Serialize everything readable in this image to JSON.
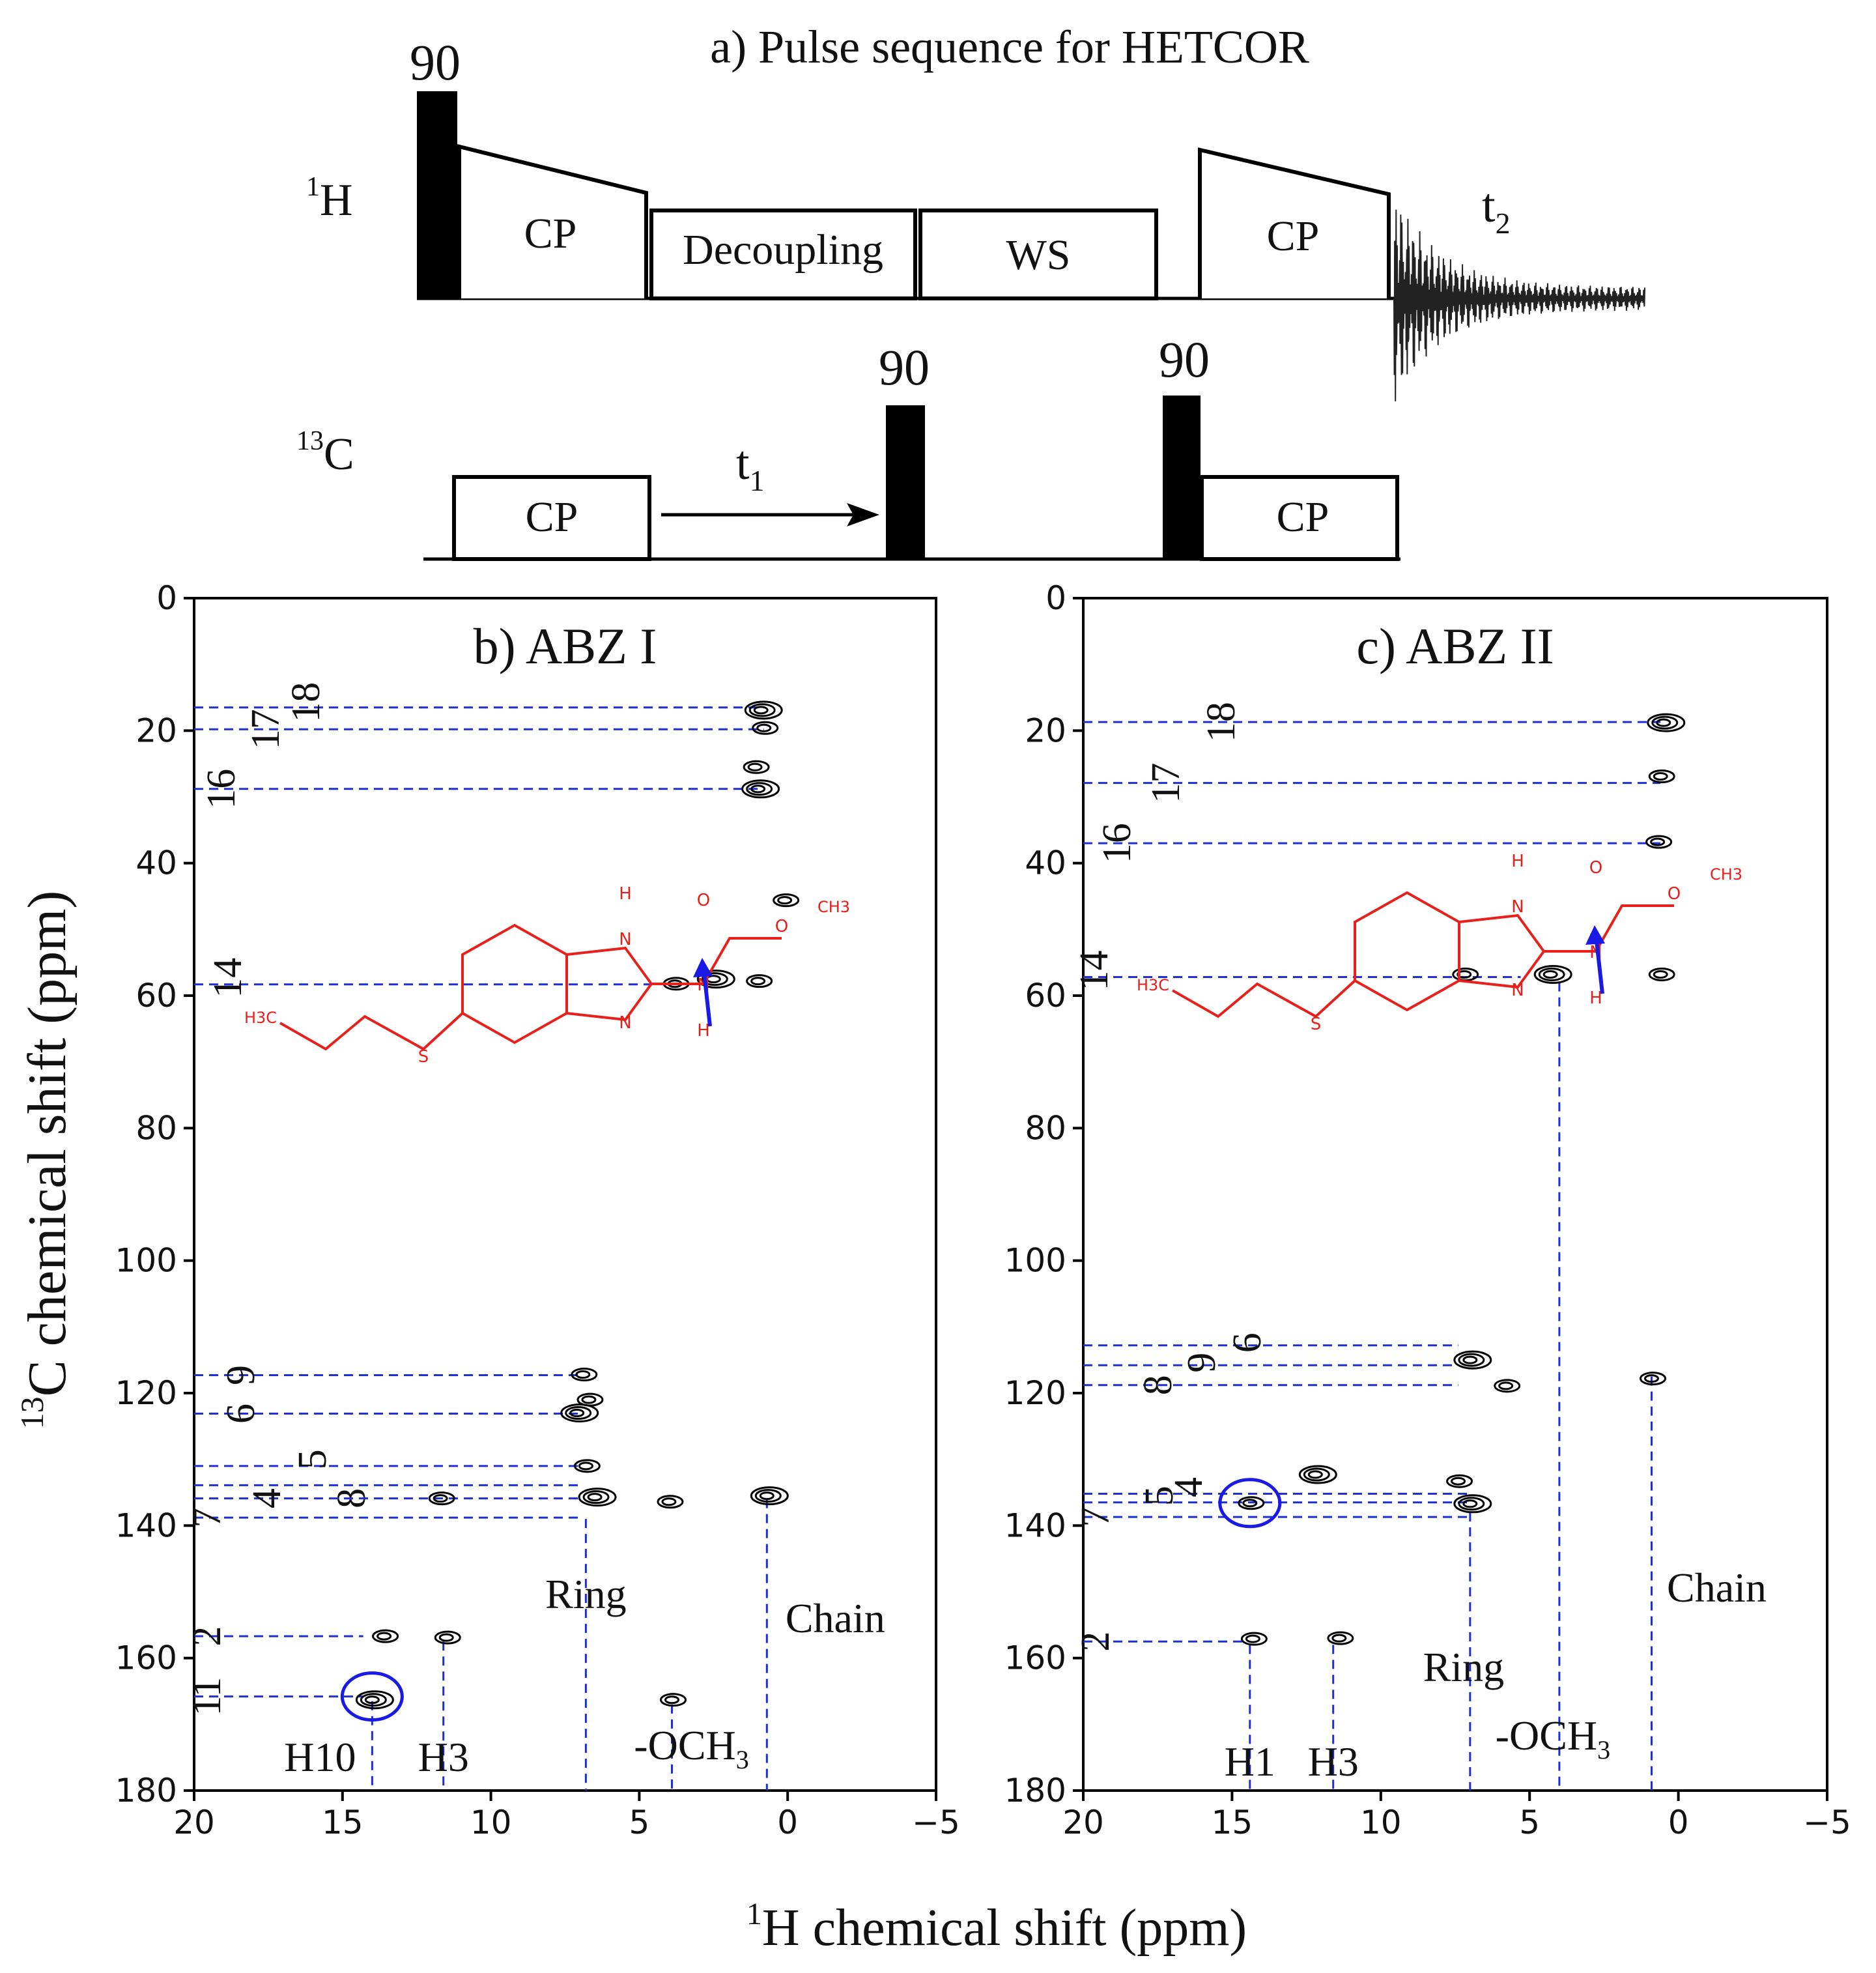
{
  "figure_title": "a) Pulse sequence for HETCOR",
  "pulse_sequence": {
    "channel_h": {
      "label": "1H",
      "sup": "1",
      "sym": "H"
    },
    "channel_c": {
      "label": "13C",
      "sup": "13",
      "sym": "C"
    },
    "pulse_90_label": "90",
    "blocks": {
      "cp": "CP",
      "decoupling": "Decoupling",
      "ws": "WS"
    },
    "t1": {
      "sym": "t",
      "sub": "1"
    },
    "t2": {
      "sym": "t",
      "sub": "2"
    }
  },
  "axes": {
    "x_label": {
      "sup": "1",
      "text": "H chemical shift (ppm)"
    },
    "y_label": {
      "sup": "13",
      "text": "C chemical shift (ppm)"
    },
    "x_ticks": [
      "20",
      "15",
      "10",
      "5",
      "0",
      "−5"
    ],
    "y_ticks": [
      "0",
      "20",
      "40",
      "60",
      "80",
      "100",
      "120",
      "140",
      "160",
      "180"
    ]
  },
  "colors": {
    "guide": "#1f2fd6",
    "molecule": "#e8201c",
    "arrow": "#1a1ae6",
    "contour": "#000000"
  },
  "chart_data": [
    {
      "type": "contour",
      "title": "b) ABZ I",
      "xlabel": "1H chemical shift (ppm)",
      "ylabel": "13C chemical shift (ppm)",
      "xlim": [
        20,
        -5
      ],
      "ylim": [
        180,
        0
      ],
      "h_lines": [
        {
          "label": "18",
          "c": 16.5,
          "h_end": 0.8
        },
        {
          "label": "17",
          "c": 19.8,
          "h_end": 0.8
        },
        {
          "label": "16",
          "c": 28.8,
          "h_end": 1.0
        },
        {
          "label": "14",
          "c": 58.3,
          "h_end": 4.4
        },
        {
          "label": "9",
          "c": 117.3,
          "h_end": 7.0
        },
        {
          "label": "6",
          "c": 123.1,
          "h_end": 7.0
        },
        {
          "label": "5",
          "c": 131.0,
          "h_end": 7.0
        },
        {
          "label": "8",
          "c": 133.9,
          "h_end": 7.0
        },
        {
          "label": "4",
          "c": 135.9,
          "h_end": 7.0
        },
        {
          "label": "7",
          "c": 138.8,
          "h_end": 7.0
        },
        {
          "label": "2",
          "c": 156.7,
          "h_end": 14.3
        },
        {
          "label": "11",
          "c": 165.8,
          "h_end": 14.3
        }
      ],
      "v_lines": [
        {
          "label": "H10",
          "h": 14.0,
          "c_start": 166.5
        },
        {
          "label": "H3",
          "h": 11.6,
          "c_start": 157.5
        },
        {
          "label": "Ring",
          "h": 6.8,
          "c_start": 139.0
        },
        {
          "label": "-OCH3",
          "h": 3.9,
          "c_start": 167.0
        },
        {
          "label": "Chain",
          "h": 0.7,
          "c_start": 136.0
        }
      ],
      "peaks": [
        {
          "h": 0.9,
          "c": 16.9
        },
        {
          "h": 0.8,
          "c": 19.6
        },
        {
          "h": 1.1,
          "c": 25.5
        },
        {
          "h": 1.0,
          "c": 28.8
        },
        {
          "h": 0.1,
          "c": 45.6
        },
        {
          "h": 3.8,
          "c": 58.2
        },
        {
          "h": 2.5,
          "c": 57.5
        },
        {
          "h": 1.0,
          "c": 57.8
        },
        {
          "h": 6.9,
          "c": 117.2
        },
        {
          "h": 7.1,
          "c": 123.0
        },
        {
          "h": 6.7,
          "c": 121.0
        },
        {
          "h": 6.8,
          "c": 131.0
        },
        {
          "h": 6.5,
          "c": 135.7
        },
        {
          "h": 11.7,
          "c": 135.9
        },
        {
          "h": 4.0,
          "c": 136.4
        },
        {
          "h": 0.7,
          "c": 135.5
        },
        {
          "h": 13.6,
          "c": 156.7
        },
        {
          "h": 11.5,
          "c": 156.9
        },
        {
          "h": 14.0,
          "c": 166.3
        },
        {
          "h": 3.9,
          "c": 166.3
        }
      ],
      "highlight": {
        "h": 14.0,
        "c": 165.8
      },
      "molecule_labels": {
        "n1": "N",
        "h1": "H",
        "n2": "N",
        "n3": "N",
        "h3": "H",
        "o1": "O",
        "o2": "O",
        "ch3": "CH3",
        "s": "S",
        "h3c": "H3C"
      }
    },
    {
      "type": "contour",
      "title": "c) ABZ II",
      "xlabel": "1H chemical shift (ppm)",
      "ylabel": "13C chemical shift (ppm)",
      "xlim": [
        20,
        -5
      ],
      "ylim": [
        180,
        0
      ],
      "h_lines": [
        {
          "label": "18",
          "c": 18.7,
          "h_end": 0.6
        },
        {
          "label": "17",
          "c": 27.9,
          "h_end": 0.6
        },
        {
          "label": "16",
          "c": 37.0,
          "h_end": 0.6
        },
        {
          "label": "14",
          "c": 57.2,
          "h_end": 5.3
        },
        {
          "label": "6",
          "c": 112.8,
          "h_end": 7.4
        },
        {
          "label": "9",
          "c": 115.8,
          "h_end": 7.4
        },
        {
          "label": "8",
          "c": 118.8,
          "h_end": 7.4
        },
        {
          "label": "4",
          "c": 135.2,
          "h_end": 7.0
        },
        {
          "label": "5",
          "c": 136.5,
          "h_end": 7.0
        },
        {
          "label": "7",
          "c": 138.7,
          "h_end": 7.0
        }
      ],
      "h_lines_extra": [
        {
          "label": "2",
          "c": 157.5,
          "h_end": 14.5
        }
      ],
      "v_lines": [
        {
          "label": "H1",
          "h": 14.4,
          "c_start": 158.0
        },
        {
          "label": "H3",
          "h": 11.6,
          "c_start": 158.0
        },
        {
          "label": "Ring",
          "h": 7.0,
          "c_start": 138.0
        },
        {
          "label": "-OCH3",
          "h": 4.0,
          "c_start": 58.0
        },
        {
          "label": "Chain",
          "h": 0.9,
          "c_start": 117.5
        }
      ],
      "peaks": [
        {
          "h": 0.5,
          "c": 18.8
        },
        {
          "h": 0.6,
          "c": 26.9
        },
        {
          "h": 0.7,
          "c": 36.8
        },
        {
          "h": 4.3,
          "c": 56.8
        },
        {
          "h": 7.2,
          "c": 56.8
        },
        {
          "h": 0.6,
          "c": 56.8
        },
        {
          "h": 7.0,
          "c": 115.0
        },
        {
          "h": 5.8,
          "c": 118.9
        },
        {
          "h": 0.9,
          "c": 117.8
        },
        {
          "h": 12.2,
          "c": 132.3
        },
        {
          "h": 7.4,
          "c": 133.3
        },
        {
          "h": 14.4,
          "c": 136.6
        },
        {
          "h": 7.0,
          "c": 136.7
        },
        {
          "h": 14.3,
          "c": 157.1
        },
        {
          "h": 11.4,
          "c": 157.0
        }
      ],
      "highlight": {
        "h": 14.4,
        "c": 136.6
      },
      "molecule_labels": {
        "n1": "N",
        "h1": "H",
        "n2": "N",
        "n3": "N",
        "h3": "H",
        "o1": "O",
        "o2": "O",
        "ch3": "CH3",
        "s": "S",
        "h3c": "H3C"
      }
    }
  ]
}
